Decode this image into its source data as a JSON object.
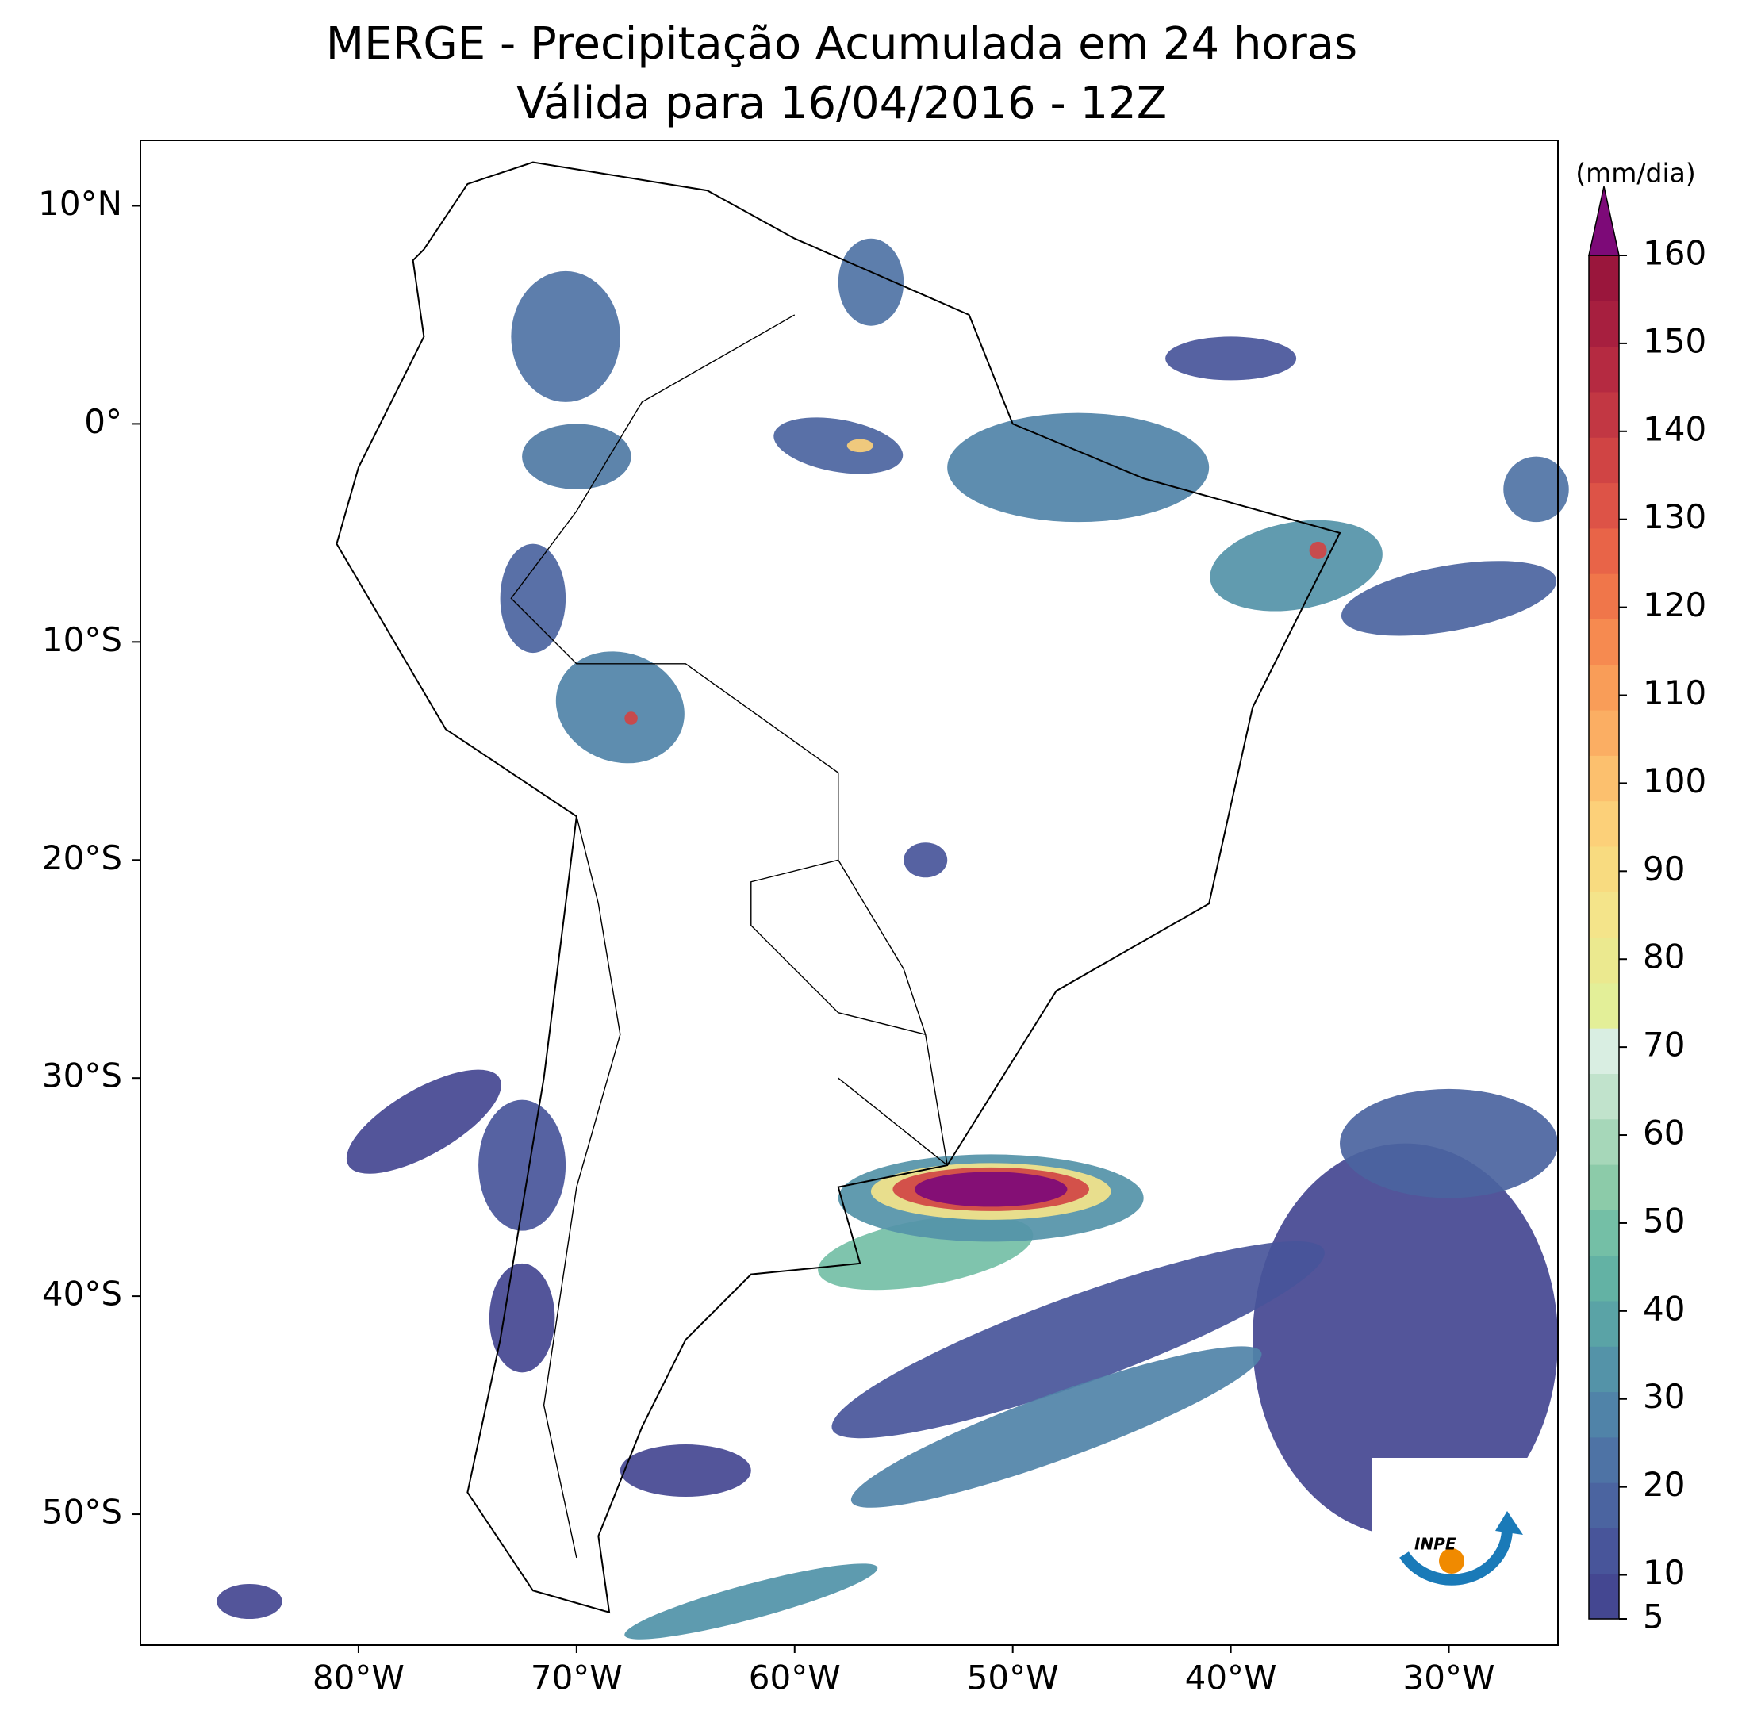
{
  "title": "MERGE - Precipitação Acumulada em 24 horas",
  "subtitle": "Válida para 16/04/2016 - 12Z",
  "map": {
    "xlim": [
      -90,
      -25
    ],
    "ylim": [
      -56,
      13
    ],
    "xticks": [
      {
        "value": -80,
        "label": "80°W"
      },
      {
        "value": -70,
        "label": "70°W"
      },
      {
        "value": -60,
        "label": "60°W"
      },
      {
        "value": -50,
        "label": "50°W"
      },
      {
        "value": -40,
        "label": "40°W"
      },
      {
        "value": -30,
        "label": "30°W"
      }
    ],
    "yticks": [
      {
        "value": 10,
        "label": "10°N"
      },
      {
        "value": 0,
        "label": "0°"
      },
      {
        "value": -10,
        "label": "10°S"
      },
      {
        "value": -20,
        "label": "20°S"
      },
      {
        "value": -30,
        "label": "30°S"
      },
      {
        "value": -40,
        "label": "40°S"
      },
      {
        "value": -50,
        "label": "50°S"
      }
    ]
  },
  "colorbar": {
    "label": "(mm/dia)",
    "lim": [
      5,
      160
    ],
    "ticks": [
      5,
      10,
      20,
      30,
      40,
      50,
      60,
      70,
      80,
      90,
      100,
      110,
      120,
      130,
      140,
      150,
      160
    ],
    "colors": [
      "#444791",
      "#48559a",
      "#4b64a0",
      "#4e73a5",
      "#5083a8",
      "#5493a8",
      "#5aa3a6",
      "#63b2a4",
      "#74bfa6",
      "#8ccba9",
      "#a6d7b9",
      "#c1e3cc",
      "#d9eee2",
      "#e3ef98",
      "#ebe98f",
      "#f4e48a",
      "#f8db80",
      "#fcd079",
      "#fcc06e",
      "#fbae63",
      "#f99d58",
      "#f68a50",
      "#f0764a",
      "#e86448",
      "#dd5347",
      "#d04444",
      "#c23743",
      "#b52a41",
      "#a71f3f",
      "#9a163c"
    ],
    "extend_color": "#7d0a78"
  },
  "logo": {
    "text": "INPE"
  }
}
